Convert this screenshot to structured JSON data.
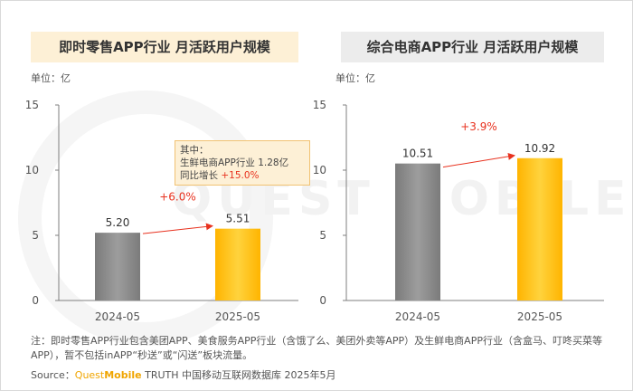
{
  "watermark": "QUEST MOBILE",
  "chart_data": [
    {
      "type": "bar",
      "title": "即时零售APP行业 月活跃用户规模",
      "unit_label": "单位：亿",
      "categories": [
        "2024-05",
        "2025-05"
      ],
      "values": [
        5.2,
        5.51
      ],
      "value_labels": [
        "5.20",
        "5.51"
      ],
      "ylim": [
        0,
        15
      ],
      "yticks": [
        "0",
        "5",
        "10",
        "15"
      ],
      "growth_label": "+6.0%",
      "colors": [
        "#8c8c8c",
        "#ffc000"
      ],
      "callout": {
        "line1": "其中：",
        "line2_text": "生鲜电商APP行业 ",
        "line2_value": "1.28亿",
        "line3_text": "同比增长 ",
        "line3_value": "+15.0%"
      }
    },
    {
      "type": "bar",
      "title": "综合电商APP行业 月活跃用户规模",
      "unit_label": "单位：亿",
      "categories": [
        "2024-05",
        "2025-05"
      ],
      "values": [
        10.51,
        10.92
      ],
      "value_labels": [
        "10.51",
        "10.92"
      ],
      "ylim": [
        0,
        15
      ],
      "yticks": [
        "0",
        "5",
        "10",
        "15"
      ],
      "growth_label": "+3.9%",
      "colors": [
        "#8c8c8c",
        "#ffc000"
      ]
    }
  ],
  "note": "注：即时零售APP行业包含美团APP、美食服务APP行业（含饿了么、美团外卖等APP）及生鲜电商APP行业（含盒马、叮咚买菜等APP），暂不包括inAPP“秒送”或“闪送”板块流量。",
  "source": {
    "prefix": "Source：",
    "brand_a": "Quest",
    "brand_b": "Mobile",
    "suffix": " TRUTH 中国移动互联网数据库 2025年5月"
  }
}
